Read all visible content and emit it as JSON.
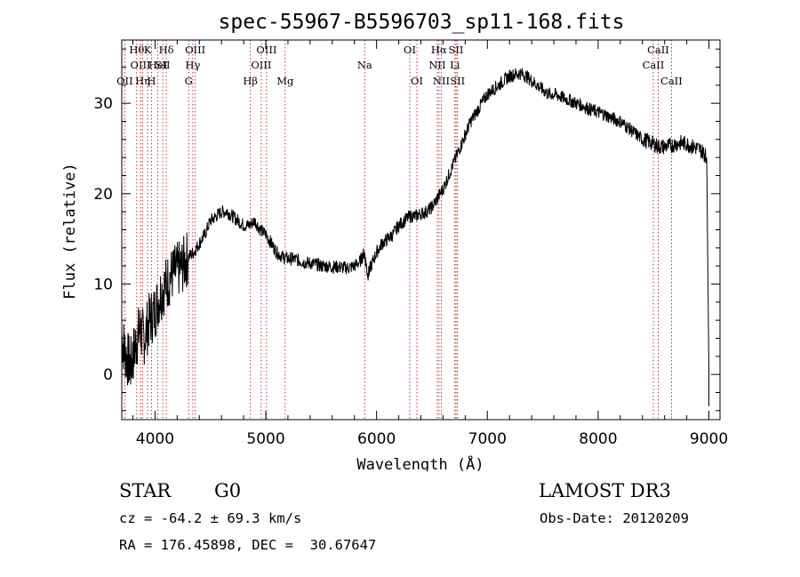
{
  "chart_data": {
    "type": "line",
    "title": "spec-55967-B5596703_sp11-168.fits",
    "xlabel": "Wavelength (Å)",
    "ylabel": "Flux (relative)",
    "xlim": [
      3700,
      9100
    ],
    "ylim": [
      -5,
      37
    ],
    "xticks": [
      4000,
      5000,
      6000,
      7000,
      8000,
      9000
    ],
    "yticks": [
      0,
      10,
      20,
      30
    ],
    "grid": false,
    "series": [
      {
        "name": "spectrum",
        "x": [
          3700,
          3740,
          3780,
          3820,
          3860,
          3900,
          3950,
          4000,
          4050,
          4100,
          4150,
          4200,
          4250,
          4300,
          4350,
          4400,
          4450,
          4500,
          4550,
          4600,
          4650,
          4700,
          4750,
          4800,
          4850,
          4900,
          4950,
          5000,
          5050,
          5100,
          5150,
          5200,
          5250,
          5300,
          5350,
          5400,
          5450,
          5500,
          5550,
          5600,
          5650,
          5700,
          5750,
          5800,
          5850,
          5890,
          5920,
          5950,
          6000,
          6050,
          6100,
          6150,
          6200,
          6250,
          6300,
          6350,
          6400,
          6450,
          6500,
          6550,
          6600,
          6650,
          6700,
          6750,
          6800,
          6850,
          6900,
          6950,
          7000,
          7050,
          7100,
          7150,
          7200,
          7250,
          7300,
          7350,
          7400,
          7450,
          7500,
          7550,
          7600,
          7650,
          7700,
          7750,
          7800,
          7850,
          7900,
          7950,
          8000,
          8050,
          8100,
          8150,
          8200,
          8250,
          8300,
          8350,
          8400,
          8450,
          8500,
          8550,
          8600,
          8650,
          8700,
          8750,
          8800,
          8850,
          8900,
          8950,
          8980,
          9000
        ],
        "values": [
          4,
          2,
          1,
          3,
          5,
          4,
          6,
          7,
          9,
          10,
          11,
          11.5,
          12,
          13,
          13.5,
          14.5,
          15.5,
          17,
          17.5,
          18,
          18,
          17.5,
          17,
          16.5,
          16.5,
          17,
          16,
          15.5,
          14.5,
          13.5,
          13,
          12.8,
          12.8,
          12.6,
          12.4,
          12.3,
          12.2,
          12,
          12,
          11.9,
          11.9,
          11.8,
          11.8,
          12,
          12.5,
          13.5,
          11,
          12,
          13.5,
          14.5,
          15,
          15.5,
          16.5,
          17,
          17.5,
          17.5,
          17.8,
          18,
          18.5,
          19.5,
          20.5,
          22,
          23.5,
          25,
          26.5,
          28,
          29,
          30,
          31,
          31.5,
          32,
          32.5,
          33,
          33.2,
          33.3,
          33,
          32.5,
          32,
          31.5,
          31,
          31,
          30.8,
          30.5,
          30.3,
          30,
          29.8,
          29.5,
          29.2,
          29,
          28.8,
          28.5,
          28.2,
          28,
          27.5,
          27,
          26.5,
          26,
          25.8,
          25.5,
          25.2,
          25.2,
          25.3,
          25.5,
          25.6,
          25.5,
          25.2,
          25,
          24.6,
          24,
          0
        ]
      }
    ],
    "line_markers": [
      {
        "wavelength": 3835,
        "row": 0,
        "label": "Hθ"
      },
      {
        "wavelength": 3869,
        "row": 1,
        "label": "OIII"
      },
      {
        "wavelength": 3727,
        "row": 2,
        "label": "OII"
      },
      {
        "wavelength": 3889,
        "row": 2,
        "label": "Hη"
      },
      {
        "wavelength": 3933,
        "row": 0,
        "label": "K"
      },
      {
        "wavelength": 3968,
        "row": 2,
        "label": "H"
      },
      {
        "wavelength": 4026,
        "row": 1,
        "label": "HeI"
      },
      {
        "wavelength": 4070,
        "row": 1,
        "label": "SII"
      },
      {
        "wavelength": 4102,
        "row": 0,
        "label": "Hδ"
      },
      {
        "wavelength": 4304,
        "row": 2,
        "label": "G"
      },
      {
        "wavelength": 4341,
        "row": 1,
        "label": "Hγ"
      },
      {
        "wavelength": 4363,
        "row": 0,
        "label": "OIII"
      },
      {
        "wavelength": 4861,
        "row": 2,
        "label": "Hβ"
      },
      {
        "wavelength": 4959,
        "row": 1,
        "label": "OIII"
      },
      {
        "wavelength": 5007,
        "row": 0,
        "label": "OIII"
      },
      {
        "wavelength": 5175,
        "row": 2,
        "label": "Mg"
      },
      {
        "wavelength": 5893,
        "row": 1,
        "label": "Na"
      },
      {
        "wavelength": 6300,
        "row": 0,
        "label": "OI"
      },
      {
        "wavelength": 6364,
        "row": 2,
        "label": "OI"
      },
      {
        "wavelength": 6548,
        "row": 1,
        "label": "NII"
      },
      {
        "wavelength": 6563,
        "row": 0,
        "label": "Hα"
      },
      {
        "wavelength": 6584,
        "row": 2,
        "label": "NII"
      },
      {
        "wavelength": 6707,
        "row": 1,
        "label": "Li"
      },
      {
        "wavelength": 6717,
        "row": 0,
        "label": "SII"
      },
      {
        "wavelength": 6731,
        "row": 2,
        "label": "SII"
      },
      {
        "wavelength": 8498,
        "row": 1,
        "label": "CaII"
      },
      {
        "wavelength": 8542,
        "row": 0,
        "label": "CaII"
      },
      {
        "wavelength": 8662,
        "row": 2,
        "label": "CaII"
      }
    ]
  },
  "info": {
    "class": "STAR",
    "subclass": "G0",
    "survey": "LAMOST DR3",
    "redshift": "cz = -64.2 ± 69.3 km/s",
    "obs_date": "Obs-Date: 20120209",
    "coords": "RA = 176.45898, DEC =  30.67647"
  }
}
